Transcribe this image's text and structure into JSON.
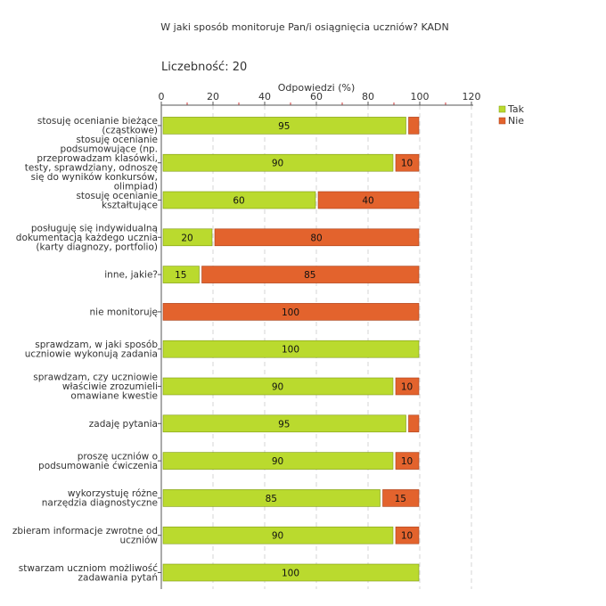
{
  "chart_data": {
    "type": "bar",
    "orientation": "horizontal",
    "stacked": true,
    "title": "W jaki sposób monitoruje Pan/i osiągnięcia uczniów?  KADN",
    "subtitle": "Liczebność: 20",
    "xlabel": "Odpowiedzi (%)",
    "ylabel": "",
    "xlim": [
      0,
      120
    ],
    "xticks": [
      0,
      20,
      40,
      60,
      80,
      100,
      120
    ],
    "grid": true,
    "legend_position": "top-right",
    "categories": [
      [
        "stosuję ocenianie bieżące",
        "(cząstkowe)"
      ],
      [
        "stosuję ocenianie",
        "podsumowujące (np.",
        "przeprowadzam klasówki,",
        "testy, sprawdziany, odnoszę",
        "się do wyników konkursów,",
        "olimpiad)"
      ],
      [
        "stosuję ocenianie",
        "kształtujące"
      ],
      [
        "posługuję się indywidualną",
        "dokumentacją każdego ucznia",
        "(karty diagnozy, portfolio)"
      ],
      [
        "inne, jakie?"
      ],
      [
        "nie monitoruję"
      ],
      [
        "sprawdzam, w jaki sposób",
        "uczniowie wykonują zadania"
      ],
      [
        "sprawdzam, czy uczniowie",
        "właściwie zrozumieli",
        "omawiane kwestie"
      ],
      [
        "zadaję pytania"
      ],
      [
        "proszę uczniów o",
        "podsumowanie ćwiczenia"
      ],
      [
        "wykorzystuję różne",
        "narzędzia diagnostyczne"
      ],
      [
        "zbieram informacje zwrotne od",
        "uczniów"
      ],
      [
        "stwarzam uczniom możliwość",
        "zadawania pytań"
      ]
    ],
    "series": [
      {
        "name": "Tak",
        "color": "#bada2e",
        "stroke": "#7e9a14",
        "values": [
          95,
          90,
          60,
          20,
          15,
          0,
          100,
          90,
          95,
          90,
          85,
          90,
          100
        ],
        "labels": [
          "95",
          "90",
          "60",
          "20",
          "15",
          "",
          "100",
          "90",
          "95",
          "90",
          "85",
          "90",
          "100"
        ]
      },
      {
        "name": "Nie",
        "color": "#e3632d",
        "stroke": "#a8401a",
        "values": [
          5,
          10,
          40,
          80,
          85,
          100,
          0,
          10,
          5,
          10,
          15,
          10,
          0
        ],
        "labels": [
          "",
          "10",
          "40",
          "80",
          "85",
          "100",
          "",
          "10",
          "",
          "10",
          "15",
          "10",
          ""
        ]
      }
    ]
  }
}
